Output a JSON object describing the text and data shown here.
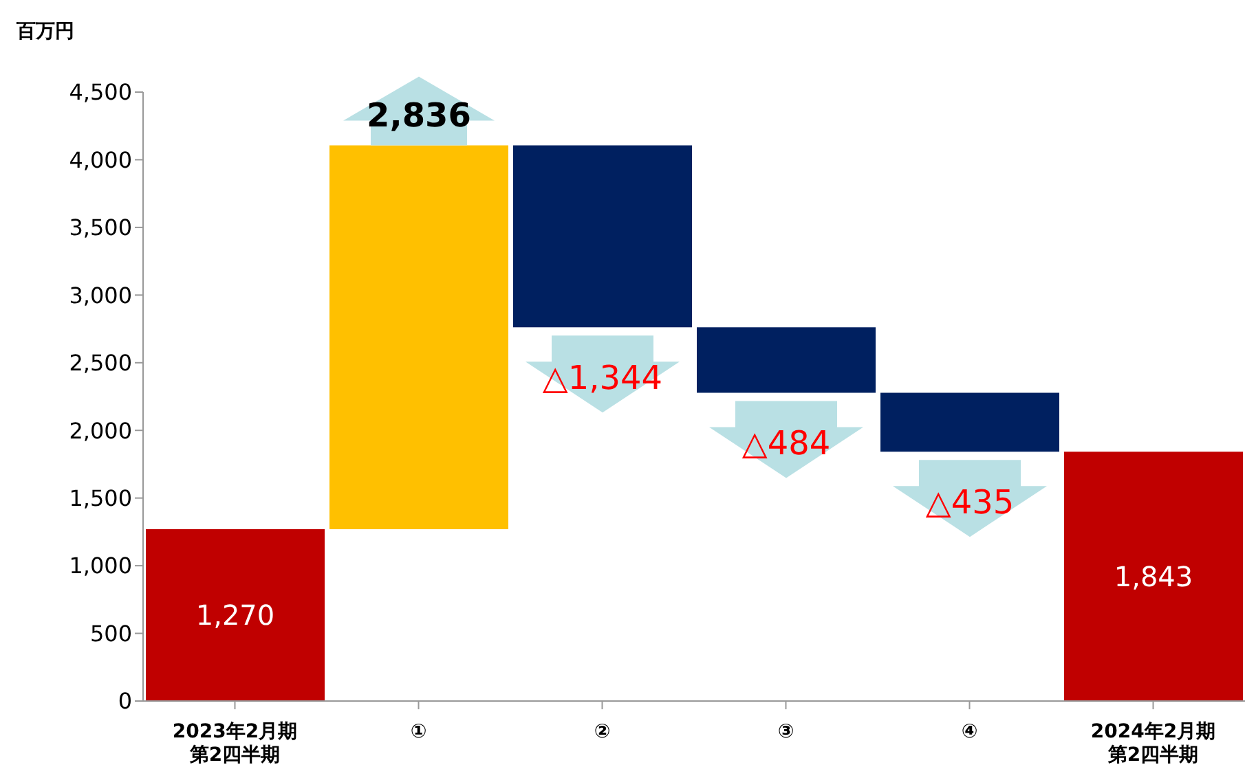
{
  "chart_data": {
    "type": "bar",
    "ylabel": "百万円",
    "categories": [
      "2023年2月期第2四半期",
      "①",
      "②",
      "③",
      "④",
      "2024年2月期第2四半期"
    ],
    "base": [
      0,
      1270,
      4106,
      2762,
      2278,
      0
    ],
    "values": [
      1270,
      2836,
      -1344,
      -484,
      -435,
      1843
    ],
    "colors": [
      "#c00000",
      "#ffc000",
      "#002060",
      "#002060",
      "#002060",
      "#c00000"
    ],
    "value_labels": [
      "1,270",
      "2,836",
      "△1,344",
      "△484",
      "△435",
      "1,843"
    ],
    "ylim": [
      0,
      4500
    ],
    "yticks": [
      0,
      500,
      {
        "value": 1000,
        "label": "1,000"
      },
      {
        "value": 1500,
        "label": "1,500"
      },
      {
        "value": 2000,
        "label": "2,000"
      },
      {
        "value": 2500,
        "label": "2,500"
      },
      {
        "value": 3000,
        "label": "3,000"
      },
      {
        "value": 3500,
        "label": "3,500"
      },
      {
        "value": 4000,
        "label": "4,000"
      },
      {
        "value": 4500,
        "label": "4,500"
      }
    ],
    "grid": false,
    "legend": false
  }
}
